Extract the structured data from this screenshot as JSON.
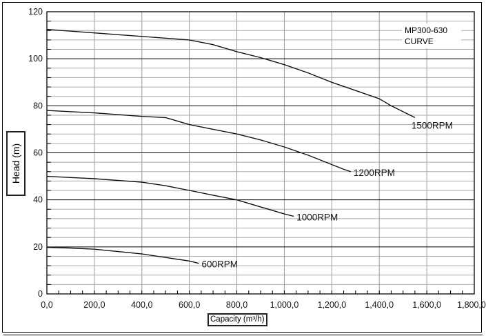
{
  "chart_data": {
    "type": "line",
    "title": "MP300-630 CURVE",
    "title_lines": [
      "MP300-630",
      "CURVE"
    ],
    "xlabel": "Capacity (m³/h)",
    "ylabel": "Head (m)",
    "xlim": [
      0,
      1800
    ],
    "ylim": [
      0,
      120
    ],
    "x_ticks": [
      0,
      200,
      400,
      600,
      800,
      1000,
      1200,
      1400,
      1600,
      1800
    ],
    "x_tick_labels": [
      "0,0",
      "200,0",
      "400,0",
      "600,0",
      "800,0",
      "1,000,0",
      "1,200,0",
      "1,400,0",
      "1,600,0",
      "1,800,0"
    ],
    "y_ticks": [
      0,
      20,
      40,
      60,
      80,
      100,
      120
    ],
    "y_tick_labels": [
      "0",
      "20",
      "40",
      "60",
      "80",
      "100",
      "120"
    ],
    "grid": true,
    "legend": "top-right",
    "series": [
      {
        "name": "1500RPM",
        "x": [
          0,
          200,
          400,
          600,
          700,
          800,
          900,
          1000,
          1100,
          1200,
          1300,
          1400,
          1450,
          1550
        ],
        "y": [
          112.5,
          111,
          109.5,
          108,
          106,
          103,
          100.5,
          97.5,
          94,
          90,
          86.5,
          83,
          80,
          75
        ]
      },
      {
        "name": "1200RPM",
        "x": [
          0,
          200,
          400,
          500,
          600,
          700,
          800,
          900,
          1000,
          1100,
          1200,
          1250,
          1280
        ],
        "y": [
          78,
          77,
          75.5,
          75,
          72,
          70,
          68,
          65.5,
          62.5,
          59,
          55,
          53,
          52
        ]
      },
      {
        "name": "1000RPM",
        "x": [
          0,
          200,
          400,
          500,
          600,
          700,
          800,
          900,
          1000,
          1040
        ],
        "y": [
          50,
          49,
          47.5,
          46,
          44,
          42,
          40,
          37,
          34,
          33
        ]
      },
      {
        "name": "600RPM",
        "x": [
          0,
          100,
          200,
          300,
          400,
          500,
          600,
          640
        ],
        "y": [
          19.8,
          19.5,
          19,
          18,
          17,
          15.5,
          14,
          13
        ]
      }
    ]
  }
}
